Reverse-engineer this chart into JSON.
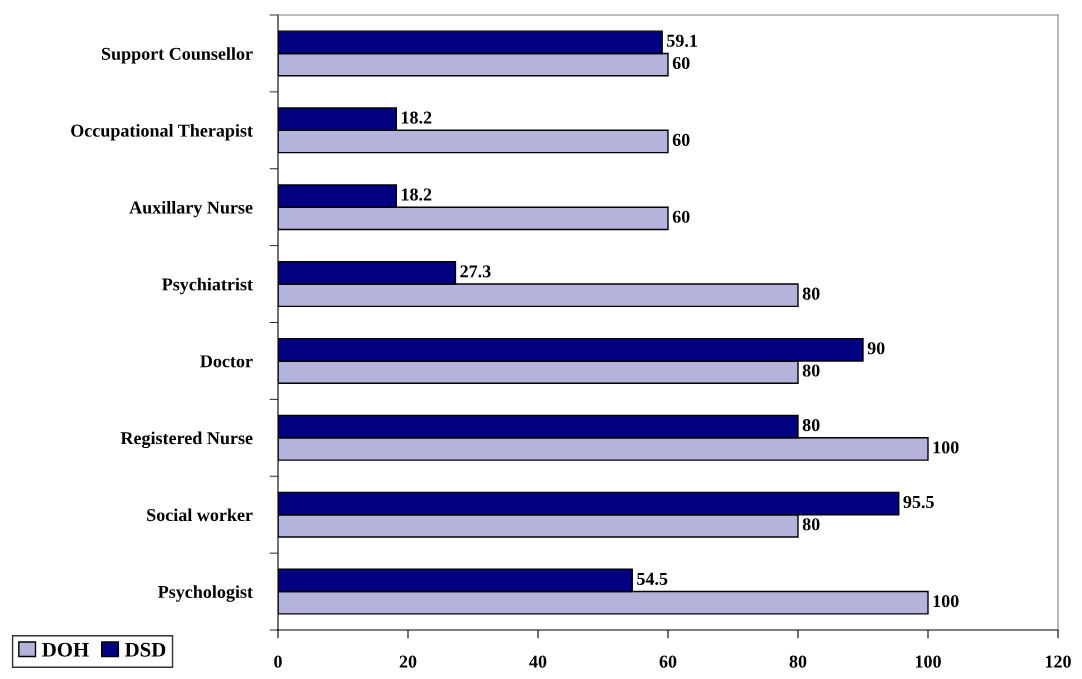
{
  "chart_data": {
    "type": "bar",
    "orientation": "horizontal",
    "categories": [
      "Support Counsellor",
      "Occupational Therapist",
      "Auxillary Nurse",
      "Psychiatrist",
      "Doctor",
      "Registered Nurse",
      "Social worker",
      "Psychologist"
    ],
    "series": [
      {
        "name": "DOH",
        "color": "#b3b3dc",
        "values": [
          60,
          60,
          60,
          80,
          80,
          100,
          80,
          100
        ]
      },
      {
        "name": "DSD",
        "color": "#000080",
        "values": [
          59.1,
          18.2,
          18.2,
          27.3,
          90,
          80,
          95.5,
          54.5
        ]
      }
    ],
    "xlim": [
      0,
      120
    ],
    "xticks": [
      0,
      20,
      40,
      60,
      80,
      100,
      120
    ],
    "data_labels": true,
    "legend": "bottom left",
    "grid": false
  }
}
